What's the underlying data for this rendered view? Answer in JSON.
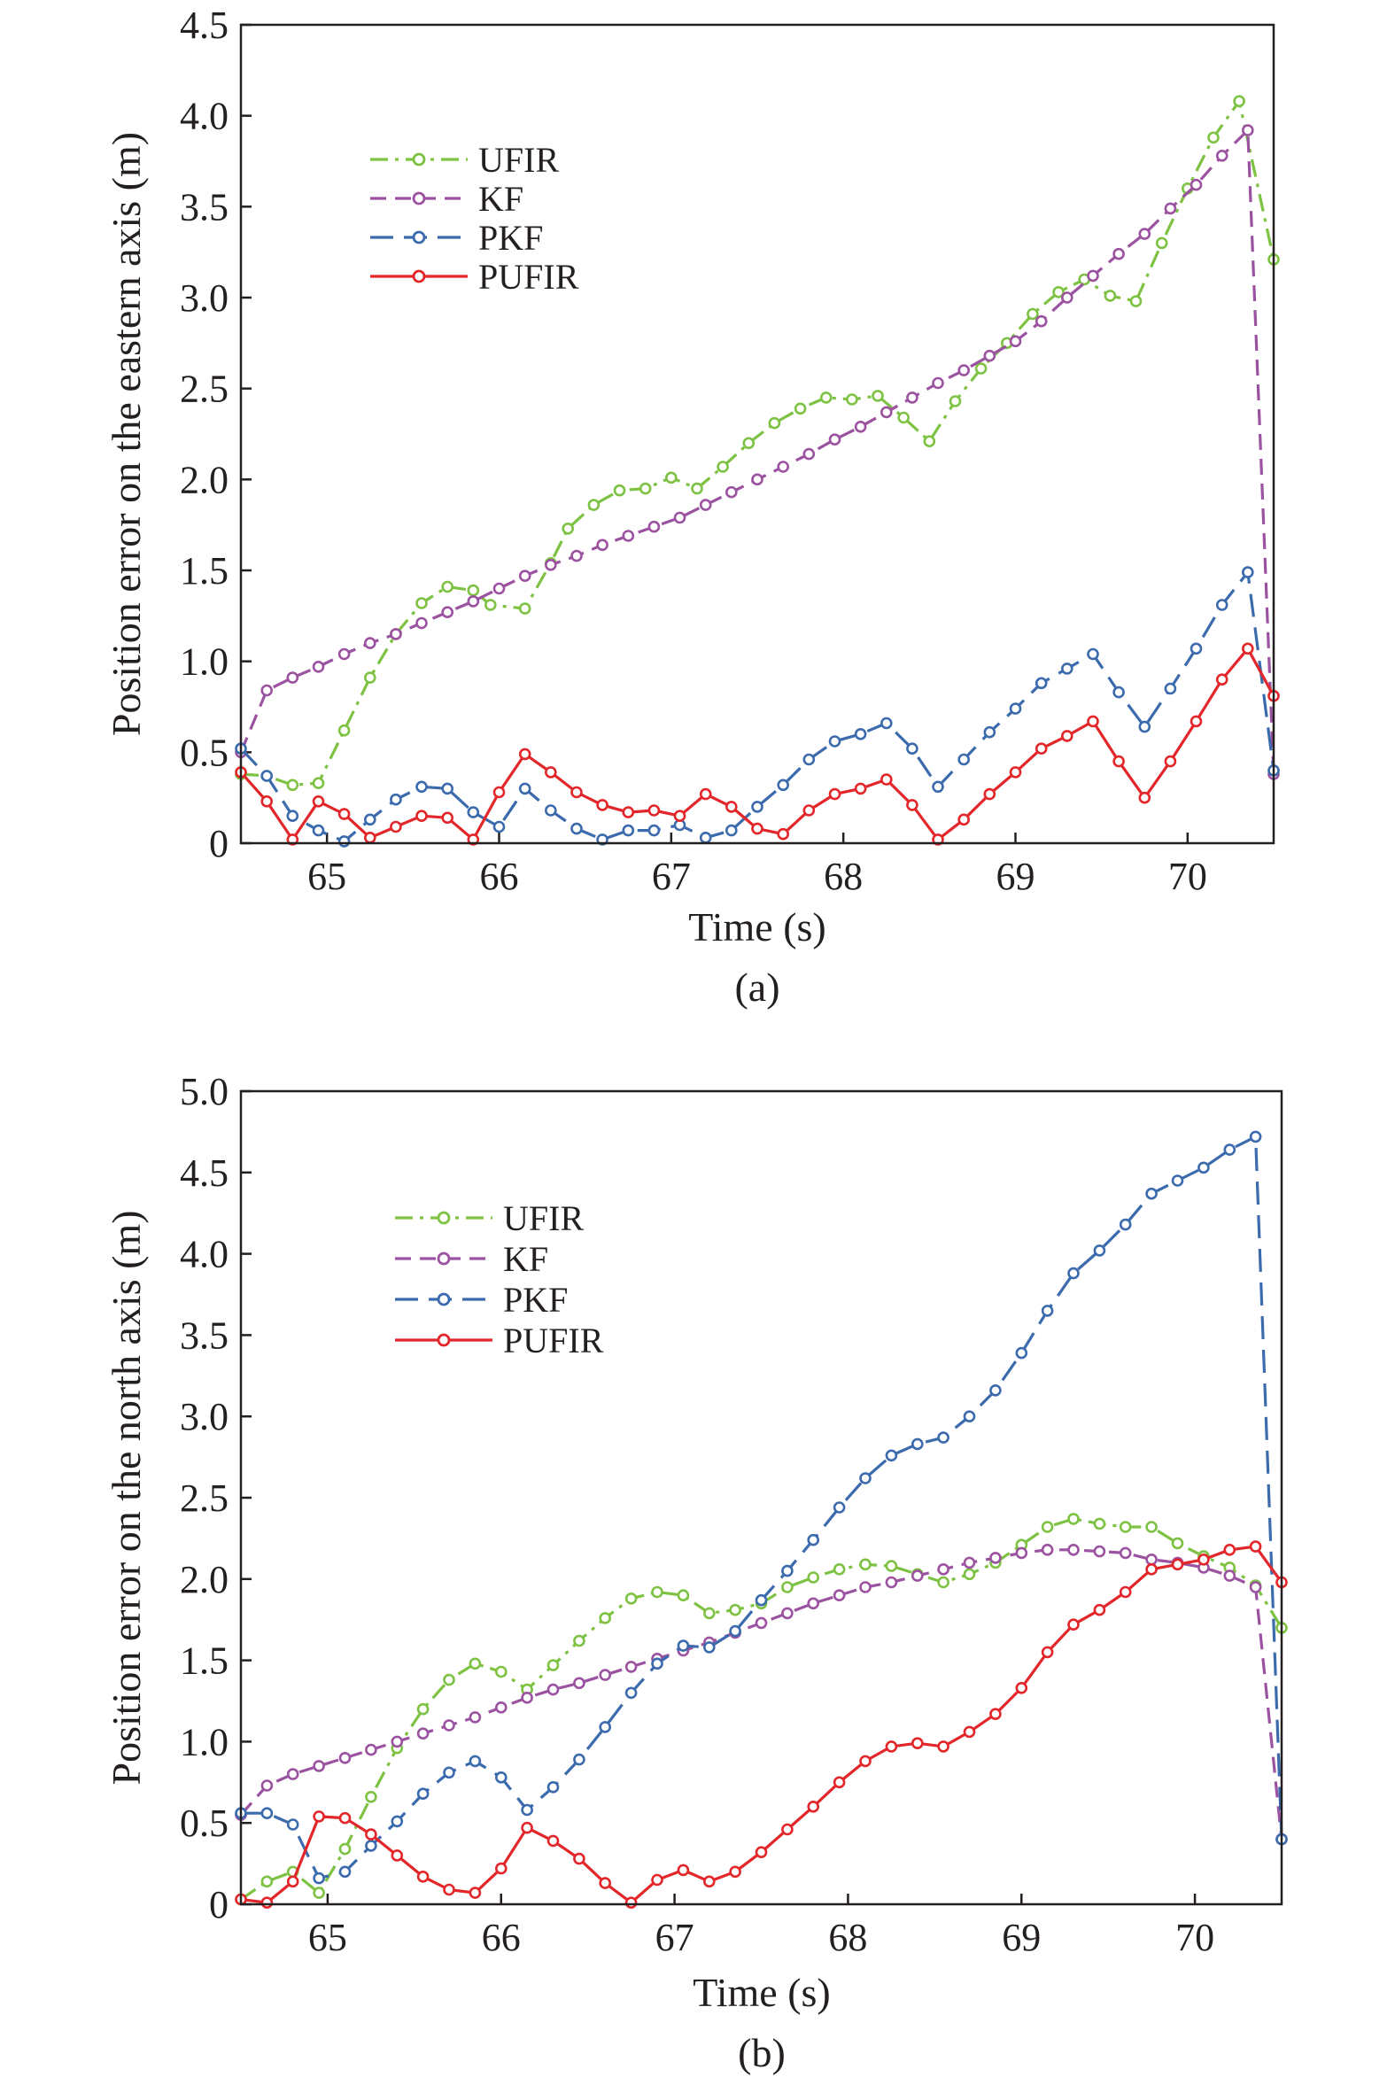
{
  "chart_data": [
    {
      "type": "line",
      "panel_label": "(a)",
      "xlabel": "Time (s)",
      "ylabel": "Position error on the eastern axis (m)",
      "xlim": [
        64.5,
        70.5
      ],
      "ylim": [
        0,
        4.5
      ],
      "xticks": [
        65,
        66,
        67,
        68,
        69,
        70
      ],
      "yticks": [
        0,
        0.5,
        1.0,
        1.5,
        2.0,
        2.5,
        3.0,
        3.5,
        4.0,
        4.5
      ],
      "ytick_labels": [
        "0",
        "0.5",
        "1.0",
        "1.5",
        "2.0",
        "2.5",
        "3.0",
        "3.5",
        "4.0",
        "4.5"
      ],
      "legend_position": "upper-left",
      "series": [
        {
          "name": "UFIR",
          "color": "#7dc242",
          "dash": "dashdot",
          "x": [
            64.5,
            64.65,
            64.8,
            64.95,
            65.1,
            65.25,
            65.4,
            65.55,
            65.7,
            65.85,
            65.95,
            66.15,
            66.3,
            66.4,
            66.55,
            66.7,
            66.85,
            67.0,
            67.15,
            67.3,
            67.45,
            67.6,
            67.75,
            67.9,
            68.05,
            68.2,
            68.35,
            68.5,
            68.65,
            68.8,
            68.95,
            69.1,
            69.25,
            69.4,
            69.55,
            69.7,
            69.85,
            70.0,
            70.15,
            70.3,
            70.5
          ],
          "y": [
            0.38,
            0.37,
            0.32,
            0.33,
            0.62,
            0.91,
            1.15,
            1.32,
            1.41,
            1.39,
            1.31,
            1.29,
            1.54,
            1.73,
            1.86,
            1.94,
            1.95,
            2.01,
            1.95,
            2.07,
            2.2,
            2.31,
            2.39,
            2.45,
            2.44,
            2.46,
            2.34,
            2.21,
            2.43,
            2.61,
            2.75,
            2.91,
            3.03,
            3.1,
            3.01,
            2.98,
            3.3,
            3.6,
            3.88,
            4.08,
            3.21
          ]
        },
        {
          "name": "KF",
          "color": "#9b52a0",
          "dash": "dash",
          "x": [
            64.5,
            64.65,
            64.8,
            64.95,
            65.1,
            65.25,
            65.4,
            65.55,
            65.7,
            65.85,
            66.0,
            66.15,
            66.3,
            66.45,
            66.6,
            66.75,
            66.9,
            67.05,
            67.2,
            67.35,
            67.5,
            67.65,
            67.8,
            67.95,
            68.1,
            68.25,
            68.4,
            68.55,
            68.7,
            68.85,
            69.0,
            69.15,
            69.3,
            69.45,
            69.6,
            69.75,
            69.9,
            70.05,
            70.2,
            70.35,
            70.5
          ],
          "y": [
            0.5,
            0.84,
            0.91,
            0.97,
            1.04,
            1.1,
            1.15,
            1.21,
            1.27,
            1.33,
            1.4,
            1.47,
            1.53,
            1.58,
            1.64,
            1.69,
            1.74,
            1.79,
            1.86,
            1.93,
            2.0,
            2.07,
            2.14,
            2.22,
            2.29,
            2.37,
            2.45,
            2.53,
            2.6,
            2.68,
            2.76,
            2.87,
            3.0,
            3.12,
            3.24,
            3.35,
            3.49,
            3.62,
            3.78,
            3.92,
            0.38
          ]
        },
        {
          "name": "PKF",
          "color": "#3b6aad",
          "dash": "longdash",
          "x": [
            64.5,
            64.65,
            64.8,
            64.95,
            65.1,
            65.25,
            65.4,
            65.55,
            65.7,
            65.85,
            66.0,
            66.15,
            66.3,
            66.45,
            66.6,
            66.75,
            66.9,
            67.05,
            67.2,
            67.35,
            67.5,
            67.65,
            67.8,
            67.95,
            68.1,
            68.25,
            68.4,
            68.55,
            68.7,
            68.85,
            69.0,
            69.15,
            69.3,
            69.45,
            69.6,
            69.75,
            69.9,
            70.05,
            70.2,
            70.35,
            70.5
          ],
          "y": [
            0.52,
            0.37,
            0.15,
            0.07,
            0.01,
            0.13,
            0.24,
            0.31,
            0.3,
            0.17,
            0.09,
            0.3,
            0.18,
            0.08,
            0.02,
            0.07,
            0.07,
            0.1,
            0.03,
            0.07,
            0.2,
            0.32,
            0.46,
            0.56,
            0.6,
            0.66,
            0.52,
            0.31,
            0.46,
            0.61,
            0.74,
            0.88,
            0.96,
            1.04,
            0.83,
            0.64,
            0.85,
            1.07,
            1.31,
            1.49,
            0.4
          ]
        },
        {
          "name": "PUFIR",
          "color": "#e2262a",
          "dash": "solid",
          "x": [
            64.5,
            64.65,
            64.8,
            64.95,
            65.1,
            65.25,
            65.4,
            65.55,
            65.7,
            65.85,
            66.0,
            66.15,
            66.3,
            66.45,
            66.6,
            66.75,
            66.9,
            67.05,
            67.2,
            67.35,
            67.5,
            67.65,
            67.8,
            67.95,
            68.1,
            68.25,
            68.4,
            68.55,
            68.7,
            68.85,
            69.0,
            69.15,
            69.3,
            69.45,
            69.6,
            69.75,
            69.9,
            70.05,
            70.2,
            70.35,
            70.5
          ],
          "y": [
            0.39,
            0.23,
            0.02,
            0.23,
            0.16,
            0.03,
            0.09,
            0.15,
            0.14,
            0.02,
            0.28,
            0.49,
            0.39,
            0.28,
            0.21,
            0.17,
            0.18,
            0.15,
            0.27,
            0.2,
            0.08,
            0.05,
            0.18,
            0.27,
            0.3,
            0.35,
            0.21,
            0.02,
            0.13,
            0.27,
            0.39,
            0.52,
            0.59,
            0.67,
            0.45,
            0.25,
            0.45,
            0.67,
            0.9,
            1.07,
            0.81
          ]
        }
      ]
    },
    {
      "type": "line",
      "panel_label": "(b)",
      "xlabel": "Time (s)",
      "ylabel": "Position error on the north axis (m)",
      "xlim": [
        64.5,
        70.5
      ],
      "ylim": [
        0,
        5.0
      ],
      "xticks": [
        65,
        66,
        67,
        68,
        69,
        70
      ],
      "yticks": [
        0,
        0.5,
        1.0,
        1.5,
        2.0,
        2.5,
        3.0,
        3.5,
        4.0,
        4.5,
        5.0
      ],
      "ytick_labels": [
        "0",
        "0.5",
        "1.0",
        "1.5",
        "2.0",
        "2.5",
        "3.0",
        "3.5",
        "4.0",
        "4.5",
        "5.0"
      ],
      "legend_position": "upper-left",
      "series": [
        {
          "name": "UFIR",
          "color": "#7dc242",
          "dash": "dashdot",
          "x": [
            64.5,
            64.65,
            64.8,
            64.95,
            65.1,
            65.25,
            65.4,
            65.55,
            65.7,
            65.85,
            66.0,
            66.15,
            66.3,
            66.45,
            66.6,
            66.75,
            66.9,
            67.05,
            67.2,
            67.35,
            67.5,
            67.65,
            67.8,
            67.95,
            68.1,
            68.25,
            68.4,
            68.55,
            68.7,
            68.85,
            69.0,
            69.15,
            69.3,
            69.45,
            69.6,
            69.75,
            69.9,
            70.05,
            70.2,
            70.35,
            70.5
          ],
          "y": [
            0.03,
            0.14,
            0.2,
            0.07,
            0.34,
            0.66,
            0.96,
            1.2,
            1.38,
            1.48,
            1.43,
            1.32,
            1.47,
            1.62,
            1.76,
            1.88,
            1.92,
            1.9,
            1.79,
            1.81,
            1.85,
            1.95,
            2.01,
            2.06,
            2.09,
            2.08,
            2.03,
            1.98,
            2.03,
            2.1,
            2.21,
            2.32,
            2.37,
            2.34,
            2.32,
            2.32,
            2.22,
            2.14,
            2.07,
            1.96,
            1.7
          ]
        },
        {
          "name": "KF",
          "color": "#9b52a0",
          "dash": "dash",
          "x": [
            64.5,
            64.65,
            64.8,
            64.95,
            65.1,
            65.25,
            65.4,
            65.55,
            65.7,
            65.85,
            66.0,
            66.15,
            66.3,
            66.45,
            66.6,
            66.75,
            66.9,
            67.05,
            67.2,
            67.35,
            67.5,
            67.65,
            67.8,
            67.95,
            68.1,
            68.25,
            68.4,
            68.55,
            68.7,
            68.85,
            69.0,
            69.15,
            69.3,
            69.45,
            69.6,
            69.75,
            69.9,
            70.05,
            70.2,
            70.35,
            70.5
          ],
          "y": [
            0.55,
            0.73,
            0.8,
            0.85,
            0.9,
            0.95,
            1.0,
            1.05,
            1.1,
            1.15,
            1.21,
            1.27,
            1.32,
            1.36,
            1.41,
            1.46,
            1.51,
            1.56,
            1.61,
            1.67,
            1.73,
            1.79,
            1.85,
            1.9,
            1.95,
            1.98,
            2.02,
            2.06,
            2.1,
            2.13,
            2.16,
            2.18,
            2.18,
            2.17,
            2.16,
            2.12,
            2.1,
            2.07,
            2.02,
            1.95,
            0.4
          ]
        },
        {
          "name": "PKF",
          "color": "#3b6aad",
          "dash": "longdash",
          "x": [
            64.5,
            64.65,
            64.8,
            64.95,
            65.1,
            65.25,
            65.4,
            65.55,
            65.7,
            65.85,
            66.0,
            66.15,
            66.3,
            66.45,
            66.6,
            66.75,
            66.9,
            67.05,
            67.2,
            67.35,
            67.5,
            67.65,
            67.8,
            67.95,
            68.1,
            68.25,
            68.4,
            68.55,
            68.7,
            68.85,
            69.0,
            69.15,
            69.3,
            69.45,
            69.6,
            69.75,
            69.9,
            70.05,
            70.2,
            70.35,
            70.5
          ],
          "y": [
            0.56,
            0.56,
            0.49,
            0.16,
            0.2,
            0.36,
            0.51,
            0.68,
            0.81,
            0.88,
            0.78,
            0.58,
            0.72,
            0.89,
            1.09,
            1.3,
            1.48,
            1.59,
            1.58,
            1.68,
            1.87,
            2.05,
            2.24,
            2.44,
            2.62,
            2.76,
            2.83,
            2.87,
            3.0,
            3.16,
            3.39,
            3.65,
            3.88,
            4.02,
            4.18,
            4.37,
            4.45,
            4.53,
            4.64,
            4.72,
            0.4
          ]
        },
        {
          "name": "PUFIR",
          "color": "#e2262a",
          "dash": "solid",
          "x": [
            64.5,
            64.65,
            64.8,
            64.95,
            65.1,
            65.25,
            65.4,
            65.55,
            65.7,
            65.85,
            66.0,
            66.15,
            66.3,
            66.45,
            66.6,
            66.75,
            66.9,
            67.05,
            67.2,
            67.35,
            67.5,
            67.65,
            67.8,
            67.95,
            68.1,
            68.25,
            68.4,
            68.55,
            68.7,
            68.85,
            69.0,
            69.15,
            69.3,
            69.45,
            69.6,
            69.75,
            69.9,
            70.05,
            70.2,
            70.35,
            70.5
          ],
          "y": [
            0.03,
            0.01,
            0.14,
            0.54,
            0.53,
            0.43,
            0.3,
            0.17,
            0.09,
            0.07,
            0.22,
            0.47,
            0.39,
            0.28,
            0.13,
            0.01,
            0.15,
            0.21,
            0.14,
            0.2,
            0.32,
            0.46,
            0.6,
            0.75,
            0.88,
            0.97,
            0.99,
            0.97,
            1.06,
            1.17,
            1.33,
            1.55,
            1.72,
            1.81,
            1.92,
            2.06,
            2.09,
            2.12,
            2.18,
            2.2,
            1.98
          ]
        }
      ]
    }
  ]
}
